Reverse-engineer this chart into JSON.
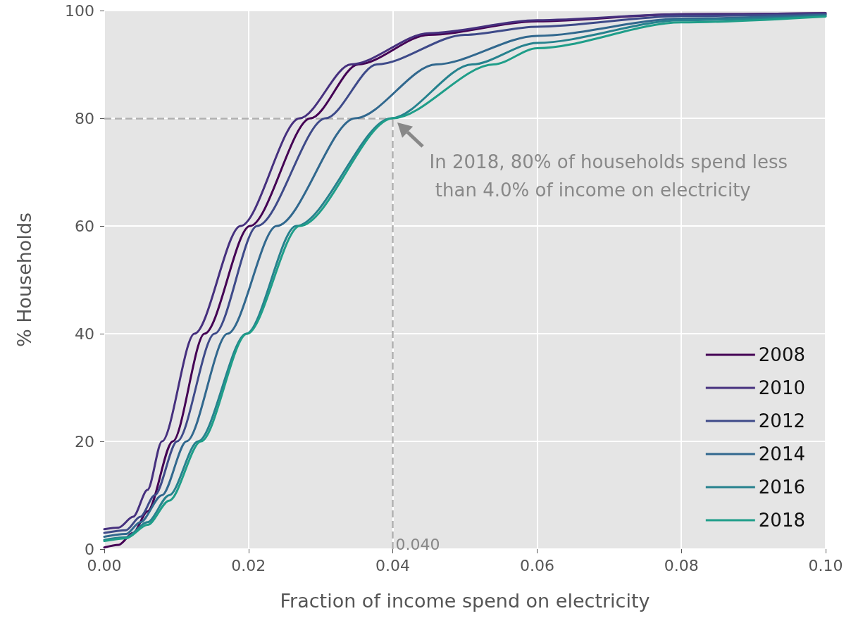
{
  "chart_data": {
    "type": "line",
    "xlabel": "Fraction of income spend on electricity",
    "ylabel": "% Households",
    "xlim": [
      0,
      0.1
    ],
    "ylim": [
      0,
      100
    ],
    "xticks": [
      {
        "value": 0,
        "label": "0.00"
      },
      {
        "value": 0.02,
        "label": "0.02"
      },
      {
        "value": 0.04,
        "label": "0.04"
      },
      {
        "value": 0.06,
        "label": "0.06"
      },
      {
        "value": 0.08,
        "label": "0.08"
      },
      {
        "value": 0.1,
        "label": "0.10"
      }
    ],
    "yticks": [
      0,
      20,
      40,
      60,
      80,
      100
    ],
    "grid": true,
    "legend": "bottom right",
    "line_style": "solid",
    "marker": "none",
    "series": [
      {
        "name": "2008",
        "color": "#440154",
        "x": [
          0,
          0.002,
          0.004,
          0.006,
          0.0095,
          0.0139,
          0.0202,
          0.0286,
          0.0352,
          0.045,
          0.06,
          0.08,
          0.1
        ],
        "values": [
          0.3,
          0.8,
          3,
          7,
          20,
          40,
          60,
          80,
          90,
          95.5,
          98,
          99.3,
          99.5
        ]
      },
      {
        "name": "2010",
        "color": "#46307e",
        "x": [
          0,
          0.002,
          0.004,
          0.006,
          0.008,
          0.0125,
          0.0189,
          0.0271,
          0.0342,
          0.045,
          0.06,
          0.08,
          0.1
        ],
        "values": [
          3.7,
          4,
          6,
          11,
          20,
          40,
          60,
          80,
          90,
          95.8,
          98.2,
          99.3,
          99.5
        ]
      },
      {
        "name": "2012",
        "color": "#3e4a89",
        "x": [
          0,
          0.003,
          0.005,
          0.007,
          0.0101,
          0.0153,
          0.0212,
          0.0307,
          0.0378,
          0.05,
          0.06,
          0.08,
          0.1
        ],
        "values": [
          3,
          3.5,
          6,
          10,
          20,
          40,
          60,
          80,
          90,
          95.5,
          97,
          99,
          99.3
        ]
      },
      {
        "name": "2014",
        "color": "#31688e",
        "x": [
          0,
          0.003,
          0.005,
          0.008,
          0.0114,
          0.0171,
          0.0239,
          0.0348,
          0.046,
          0.06,
          0.08,
          0.1
        ],
        "values": [
          2.3,
          2.8,
          5,
          10,
          20,
          40,
          60,
          80,
          90,
          95.3,
          98.5,
          99.2
        ]
      },
      {
        "name": "2016",
        "color": "#26828e",
        "x": [
          0,
          0.003,
          0.006,
          0.009,
          0.013,
          0.0197,
          0.0266,
          0.0398,
          0.051,
          0.06,
          0.08,
          0.1
        ],
        "values": [
          1.7,
          2.2,
          5,
          10,
          20,
          40,
          60,
          80,
          90,
          94,
          98.2,
          99
        ]
      },
      {
        "name": "2018",
        "color": "#1f9e89",
        "x": [
          0,
          0.003,
          0.006,
          0.009,
          0.0134,
          0.0198,
          0.0271,
          0.04,
          0.054,
          0.06,
          0.08,
          0.1
        ],
        "values": [
          1.5,
          2,
          4.5,
          9,
          20,
          40,
          60,
          80,
          90,
          93,
          97.8,
          98.9
        ]
      }
    ],
    "ref_lines": [
      {
        "axis": "y",
        "value": 80,
        "label": null,
        "color": "#b0b0b0",
        "line_style": "dashed"
      },
      {
        "axis": "x",
        "value": 0.04,
        "label": "0.040",
        "color": "#b0b0b0",
        "line_style": "dashed"
      }
    ],
    "annotations": [
      {
        "text": "In 2018, 80% of households spend less than 4.0% of income on electricity",
        "x": 0.04,
        "y": 80
      }
    ]
  }
}
